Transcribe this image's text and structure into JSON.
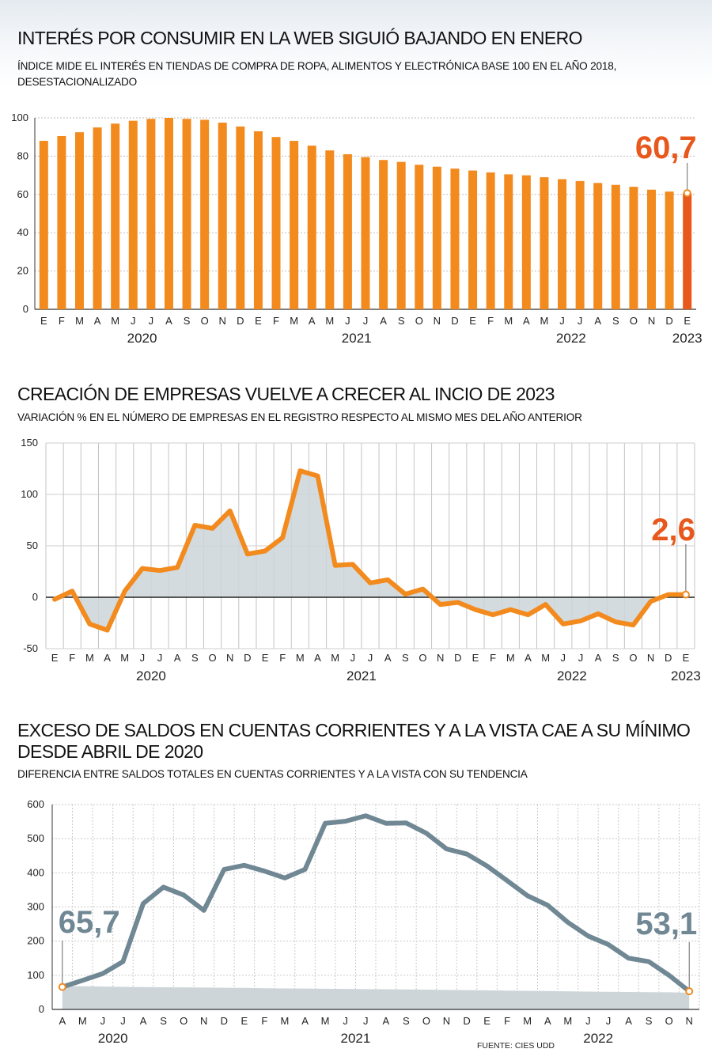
{
  "colors": {
    "orange": "#f28a1e",
    "orange_last": "#e8581c",
    "slate": "#708794",
    "area": "#cdd5d9",
    "grid": "#bdbdbd"
  },
  "source": "FUENTE: CIES UDD",
  "chart_data": [
    {
      "type": "bar",
      "title": "INTERÉS POR CONSUMIR EN LA WEB SIGUIÓ BAJANDO EN ENERO",
      "subtitle": "ÍNDICE MIDE EL INTERÉS EN TIENDAS DE COMPRA DE ROPA, ALIMENTOS Y ELECTRÓNICA BASE 100 EN EL AÑO 2018, DESESTACIONALIZADO",
      "categories": [
        "E",
        "F",
        "M",
        "A",
        "M",
        "J",
        "J",
        "A",
        "S",
        "O",
        "N",
        "D",
        "E",
        "F",
        "M",
        "A",
        "M",
        "J",
        "J",
        "A",
        "S",
        "O",
        "N",
        "D",
        "E",
        "F",
        "M",
        "A",
        "M",
        "J",
        "J",
        "A",
        "S",
        "O",
        "N",
        "D",
        "E"
      ],
      "years": [
        {
          "label": "2020",
          "index": 5.5
        },
        {
          "label": "2021",
          "index": 17.5
        },
        {
          "label": "2022",
          "index": 29.5
        },
        {
          "label": "2023",
          "index": 36
        }
      ],
      "values": [
        88,
        90.5,
        92.5,
        95,
        97,
        98.5,
        99.5,
        100,
        99.5,
        99,
        97.5,
        95.5,
        93,
        90,
        88,
        85.5,
        83,
        81,
        79.5,
        78,
        77,
        75.5,
        74.5,
        73.5,
        72.5,
        71.5,
        70.5,
        70,
        69,
        68,
        67,
        66,
        65,
        64,
        62.5,
        61.5,
        60.7
      ],
      "ylim": [
        0,
        100
      ],
      "yticks": [
        0,
        20,
        40,
        60,
        80,
        100
      ],
      "highlight_label": "60,7"
    },
    {
      "type": "line",
      "title": "CREACIÓN DE EMPRESAS VUELVE A CRECER AL INCIO DE 2023",
      "subtitle": "VARIACIÓN % EN EL NÚMERO DE EMPRESAS EN EL REGISTRO RESPECTO AL MISMO MES DEL AÑO ANTERIOR",
      "categories": [
        "E",
        "F",
        "M",
        "A",
        "M",
        "J",
        "J",
        "A",
        "S",
        "O",
        "N",
        "D",
        "E",
        "F",
        "M",
        "A",
        "M",
        "J",
        "J",
        "A",
        "S",
        "O",
        "N",
        "D",
        "E",
        "F",
        "M",
        "A",
        "M",
        "J",
        "J",
        "A",
        "S",
        "O",
        "N",
        "D",
        "E"
      ],
      "years": [
        {
          "label": "2020",
          "index": 5.5
        },
        {
          "label": "2021",
          "index": 17.5
        },
        {
          "label": "2022",
          "index": 29.5
        },
        {
          "label": "2023",
          "index": 36
        }
      ],
      "values": [
        -2,
        6,
        -26,
        -32,
        6,
        28,
        26,
        29,
        70,
        67,
        84,
        42,
        45,
        58,
        123,
        118,
        31,
        32,
        14,
        17,
        3,
        8,
        -7,
        -5,
        -12,
        -17,
        -12,
        -17,
        -7,
        -26,
        -23,
        -16,
        -24,
        -27,
        -4,
        2.6,
        2.6
      ],
      "ylim": [
        -50,
        150
      ],
      "yticks": [
        -50,
        0,
        50,
        100,
        150
      ],
      "highlight_label": "2,6"
    },
    {
      "type": "area",
      "title_line1": "EXCESO DE SALDOS EN CUENTAS CORRIENTES Y A LA VISTA CAE A SU MÍNIMO",
      "title_line2": "DESDE ABRIL DE 2020",
      "subtitle": "DIFERENCIA ENTRE SALDOS TOTALES EN CUENTAS CORRIENTES Y A LA VISTA CON SU TENDENCIA",
      "categories": [
        "A",
        "M",
        "J",
        "J",
        "A",
        "S",
        "O",
        "N",
        "D",
        "E",
        "F",
        "M",
        "A",
        "M",
        "J",
        "J",
        "A",
        "S",
        "O",
        "N",
        "D",
        "E",
        "F",
        "M",
        "A",
        "M",
        "J",
        "J",
        "A",
        "S",
        "O",
        "N"
      ],
      "years": [
        {
          "label": "2020",
          "index": 2.5
        },
        {
          "label": "2021",
          "index": 14.5
        },
        {
          "label": "2022",
          "index": 26.5
        }
      ],
      "values": [
        65.7,
        85,
        105,
        140,
        310,
        358,
        335,
        290,
        410,
        422,
        405,
        385,
        410,
        545,
        551,
        567,
        545,
        546,
        516,
        470,
        455,
        420,
        377,
        333,
        305,
        255,
        215,
        190,
        150,
        140,
        100,
        53.1
      ],
      "area_values": [
        68,
        68,
        67,
        66,
        65.5,
        65,
        64.5,
        64,
        63.5,
        63,
        62,
        61.5,
        61,
        60.5,
        60,
        59.5,
        59,
        58.5,
        58,
        57,
        56.5,
        56,
        55,
        54.5,
        54,
        53,
        52,
        51.5,
        51,
        50.5,
        50,
        49
      ],
      "ylim": [
        0,
        600
      ],
      "yticks": [
        0,
        100,
        200,
        300,
        400,
        500,
        600
      ],
      "start_label": "65,7",
      "end_label": "53,1"
    }
  ]
}
